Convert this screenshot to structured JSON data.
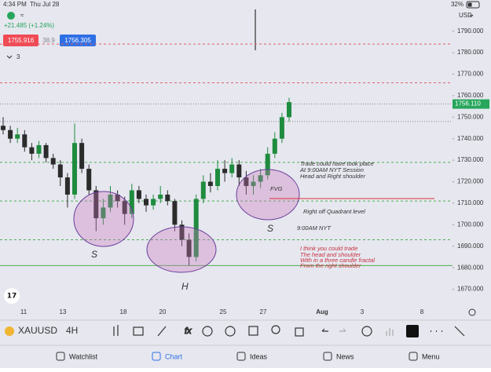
{
  "status_bar": {
    "time": "4:34 PM",
    "date": "Thu Jul 28",
    "battery": "32%"
  },
  "header": {
    "change": "+21.485 (+1.24%)",
    "sell": "1755.916",
    "spread": "38.9",
    "buy": "1756.305",
    "indicators": "3",
    "currency": "USD"
  },
  "chart_data": {
    "type": "candlestick",
    "symbol": "XAUUSD",
    "interval": "4H",
    "ylim": [
      1664,
      1799
    ],
    "yticks": [
      {
        "value": 1790,
        "label": "1790.000"
      },
      {
        "value": 1780,
        "label": "1780.000"
      },
      {
        "value": 1770,
        "label": "1770.000"
      },
      {
        "value": 1760,
        "label": "1760.000"
      },
      {
        "value": 1750,
        "label": "1750.000"
      },
      {
        "value": 1740,
        "label": "1740.000"
      },
      {
        "value": 1730,
        "label": "1730.000"
      },
      {
        "value": 1720,
        "label": "1720.000"
      },
      {
        "value": 1710,
        "label": "1710.000"
      },
      {
        "value": 1700,
        "label": "1700.000"
      },
      {
        "value": 1690,
        "label": "1690.000"
      },
      {
        "value": 1680,
        "label": "1680.000"
      },
      {
        "value": 1670,
        "label": "1670.000"
      }
    ],
    "xtick_labels": [
      "11",
      "13",
      "18",
      "20",
      "25",
      "27",
      "Aug",
      "3",
      "8"
    ],
    "last_price": {
      "value": 1756.11,
      "label": "1756.110",
      "color": "#26a65b"
    },
    "up_color": "#1e8c3e",
    "down_color": "#2b2b2b",
    "candles": [
      [
        1746,
        1750,
        1742,
        1744
      ],
      [
        1744,
        1746,
        1738,
        1740
      ],
      [
        1740,
        1745,
        1738,
        1742
      ],
      [
        1742,
        1744,
        1734,
        1736
      ],
      [
        1736,
        1738,
        1730,
        1733
      ],
      [
        1733,
        1739,
        1731,
        1737
      ],
      [
        1737,
        1738,
        1729,
        1731
      ],
      [
        1731,
        1733,
        1726,
        1728
      ],
      [
        1728,
        1730,
        1718,
        1722
      ],
      [
        1722,
        1724,
        1708,
        1714
      ],
      [
        1714,
        1747,
        1712,
        1738
      ],
      [
        1738,
        1740,
        1724,
        1726
      ],
      [
        1726,
        1728,
        1714,
        1716
      ],
      [
        1716,
        1718,
        1697,
        1703
      ],
      [
        1703,
        1712,
        1700,
        1708
      ],
      [
        1708,
        1718,
        1706,
        1714
      ],
      [
        1714,
        1716,
        1708,
        1711
      ],
      [
        1711,
        1713,
        1700,
        1705
      ],
      [
        1705,
        1719,
        1703,
        1716
      ],
      [
        1716,
        1718,
        1710,
        1712
      ],
      [
        1712,
        1714,
        1706,
        1709
      ],
      [
        1709,
        1714,
        1707,
        1712
      ],
      [
        1712,
        1718,
        1710,
        1714
      ],
      [
        1714,
        1716,
        1709,
        1711
      ],
      [
        1711,
        1712,
        1697,
        1700
      ],
      [
        1700,
        1702,
        1690,
        1693
      ],
      [
        1693,
        1696,
        1681,
        1685
      ],
      [
        1685,
        1714,
        1683,
        1712
      ],
      [
        1712,
        1723,
        1710,
        1720
      ],
      [
        1720,
        1724,
        1715,
        1718
      ],
      [
        1718,
        1730,
        1716,
        1726
      ],
      [
        1726,
        1730,
        1720,
        1724
      ],
      [
        1724,
        1731,
        1722,
        1728
      ],
      [
        1728,
        1730,
        1718,
        1722
      ],
      [
        1722,
        1725,
        1714,
        1718
      ],
      [
        1718,
        1723,
        1714,
        1720
      ],
      [
        1720,
        1726,
        1717,
        1723
      ],
      [
        1723,
        1736,
        1721,
        1733
      ],
      [
        1733,
        1743,
        1731,
        1740
      ],
      [
        1740,
        1752,
        1738,
        1750
      ],
      [
        1750,
        1759,
        1748,
        1757
      ]
    ],
    "levels": [
      {
        "value": 1784,
        "color": "#e0606e",
        "style": "dashed"
      },
      {
        "value": 1766,
        "color": "#e0606e",
        "style": "dashed"
      },
      {
        "value": 1756.11,
        "color": "#888888",
        "style": "dotted"
      },
      {
        "value": 1748,
        "color": "#888888",
        "style": "dotted"
      },
      {
        "value": 1729,
        "color": "#4caf50",
        "style": "dashed"
      },
      {
        "value": 1711,
        "color": "#4caf50",
        "style": "dashed"
      },
      {
        "value": 1693,
        "color": "#4caf50",
        "style": "dashed"
      },
      {
        "value": 1681,
        "color": "#4caf50",
        "style": "solid"
      }
    ],
    "annotations": {
      "note1": [
        "Trade could have took place",
        "At 9:00AM NYT Session",
        "Head and Right shoulder"
      ],
      "fvg": "FVG",
      "quadrant": "Right off Quadrant level",
      "session": "9:00AM NYT",
      "left_shoulder": "S",
      "right_shoulder": "S",
      "head": "H",
      "note2": [
        "I think you could trade",
        "The head and shoulder",
        "With in a three candle fractal",
        "From the right shoulder"
      ]
    }
  },
  "tabs": [
    "Watchlist",
    "Chart",
    "Ideas",
    "News",
    "Menu"
  ]
}
